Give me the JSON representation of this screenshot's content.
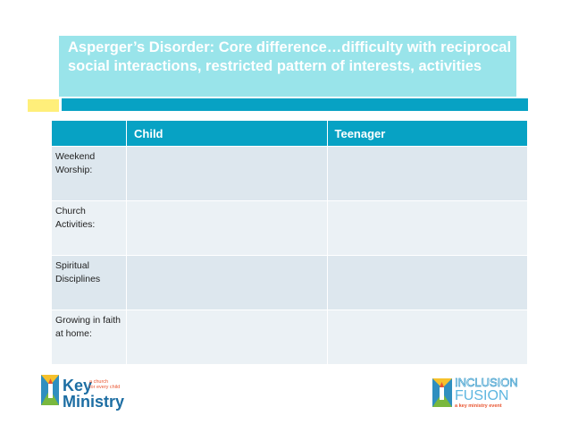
{
  "slide": {
    "title": "Asperger’s Disorder: Core difference…difficulty with reciprocal social interactions, restricted pattern of interests, activities"
  },
  "table": {
    "headers": [
      "",
      "Child",
      "Teenager"
    ],
    "rows": [
      {
        "label": "Weekend Worship:"
      },
      {
        "label": "Church Activities:"
      },
      {
        "label": "Spiritual Disciplines"
      },
      {
        "label": "Growing in faith at home:"
      }
    ]
  },
  "logos": {
    "left": {
      "line1": "Key",
      "line2": "Ministry",
      "tagline1": "a church",
      "tagline2": "for every child"
    },
    "right": {
      "line1": "INCLUSION",
      "line2": "FUSION",
      "tagline": "a key ministry event"
    }
  },
  "colors": {
    "accent": "#07a2c4",
    "title_box": "#99e4ea",
    "yellow": "#ffef7a",
    "row_dark": "#dde7ee",
    "row_light": "#ebf1f5"
  }
}
